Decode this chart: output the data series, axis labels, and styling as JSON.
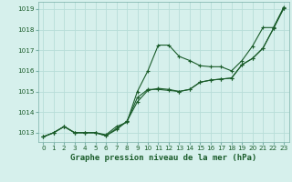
{
  "title": "Graphe pression niveau de la mer (hPa)",
  "bg_color": "#d6f0ec",
  "plot_bg_color": "#d6f0ec",
  "grid_color": "#b8ddd8",
  "line_color": "#1a5c2a",
  "xlim": [
    -0.5,
    23.5
  ],
  "ylim": [
    1012.55,
    1019.35
  ],
  "yticks": [
    1013,
    1014,
    1015,
    1016,
    1017,
    1018,
    1019
  ],
  "xticks": [
    0,
    1,
    2,
    3,
    4,
    5,
    6,
    7,
    8,
    9,
    10,
    11,
    12,
    13,
    14,
    15,
    16,
    17,
    18,
    19,
    20,
    21,
    22,
    23
  ],
  "series": [
    [
      1012.8,
      1013.0,
      1013.3,
      1013.0,
      1013.0,
      1013.0,
      1012.9,
      1013.3,
      1013.5,
      1015.0,
      1016.0,
      1017.25,
      1017.25,
      1016.7,
      1016.5,
      1016.25,
      1016.2,
      1016.2,
      1016.0,
      1016.5,
      1017.2,
      1018.1,
      1018.1,
      1019.1
    ],
    [
      1012.8,
      1013.0,
      1013.3,
      1013.0,
      1013.0,
      1013.0,
      1012.85,
      1013.15,
      1013.55,
      1014.5,
      1015.05,
      1015.15,
      1015.1,
      1015.0,
      1015.1,
      1015.45,
      1015.55,
      1015.6,
      1015.65,
      1016.3,
      1016.6,
      1017.1,
      1018.05,
      1019.05
    ],
    [
      1012.8,
      1013.0,
      1013.3,
      1013.0,
      1013.0,
      1013.0,
      1012.85,
      1013.2,
      1013.55,
      1014.7,
      1015.1,
      1015.1,
      1015.05,
      1015.0,
      1015.1,
      1015.45,
      1015.55,
      1015.6,
      1015.65,
      1016.3,
      1016.6,
      1017.1,
      1018.05,
      1019.05
    ]
  ],
  "title_fontsize": 6.5,
  "tick_fontsize": 5.2
}
